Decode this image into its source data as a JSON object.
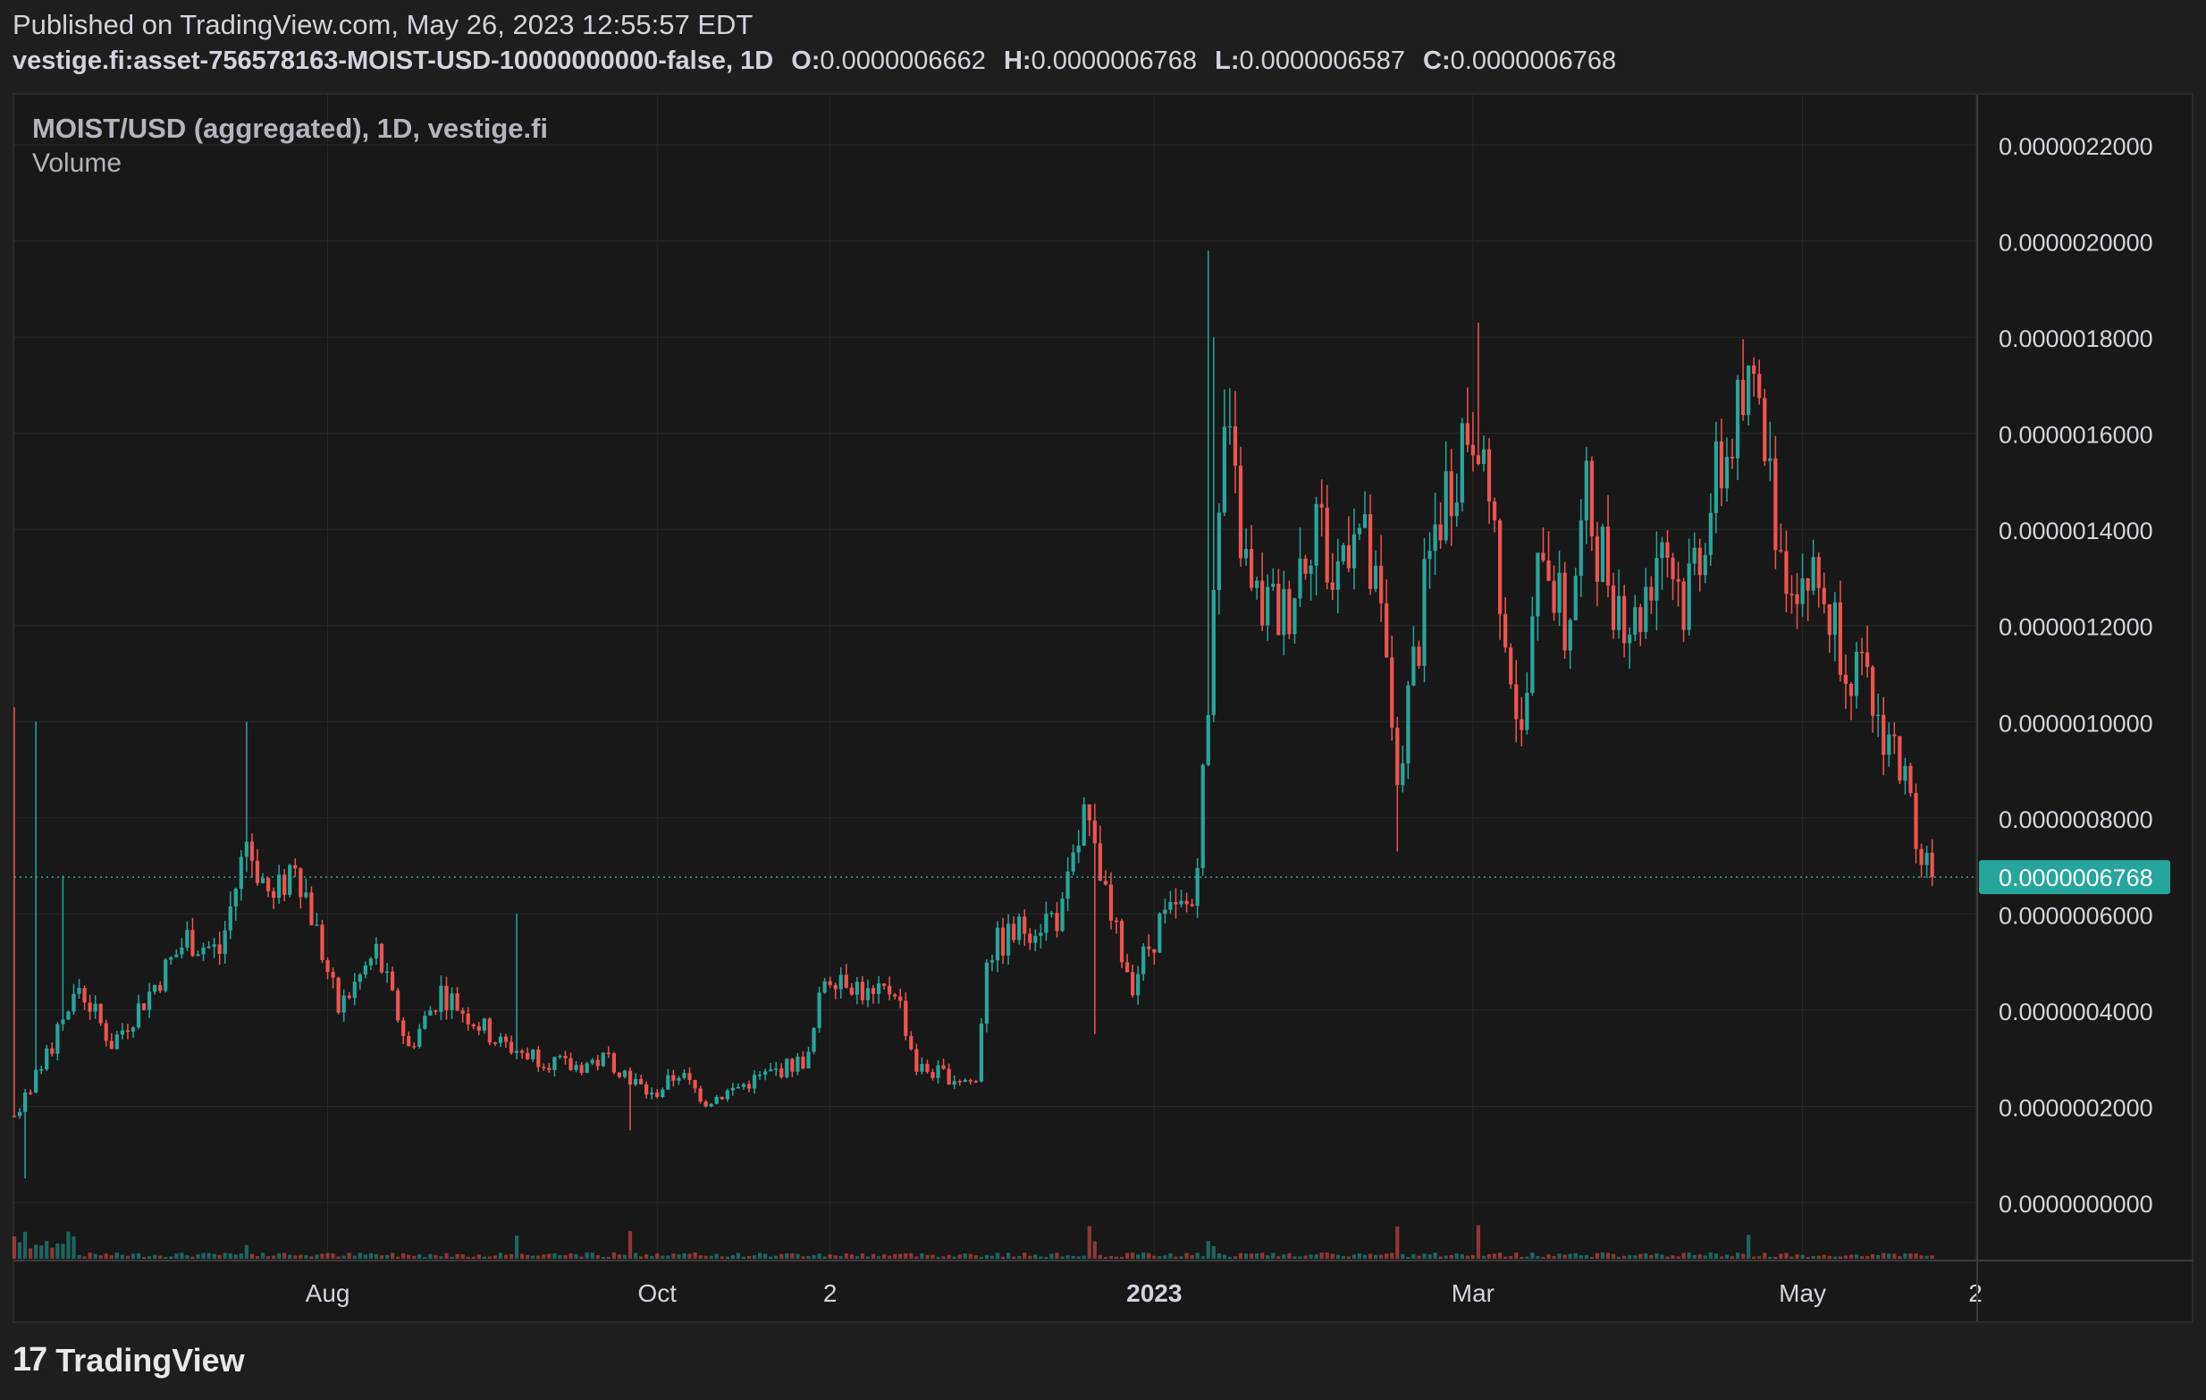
{
  "header": {
    "published": "Published on TradingView.com, May 26, 2023 12:55:57 EDT",
    "symbol": "vestige.fi:asset-756578163-MOIST-USD-10000000000-false, 1D",
    "o_label": "O:",
    "o_value": "0.0000006662",
    "h_label": "H:",
    "h_value": "0.0000006768",
    "l_label": "L:",
    "l_value": "0.0000006587",
    "c_label": "C:",
    "c_value": "0.0000006768"
  },
  "legend": {
    "title": "MOIST/USD (aggregated), 1D, vestige.fi",
    "volume": "Volume"
  },
  "footer": {
    "brand": "TradingView",
    "mark": "17"
  },
  "colors": {
    "up": "#26a69a",
    "down": "#ef5350",
    "price_badge": "#26a69a",
    "grid": "#2a2a2a",
    "axis_text": "#d1d4dc"
  },
  "chart_data": {
    "type": "candlestick",
    "title": "MOIST/USD (aggregated), 1D, vestige.fi",
    "interval": "1D",
    "date_range": [
      "2023-06-01",
      "2023-05-25"
    ],
    "x_ticks": [
      {
        "label": "Aug",
        "date": "2022-08-01"
      },
      {
        "label": "Oct",
        "date": "2022-10-01"
      },
      {
        "label": "2",
        "date": "2022-11-02"
      },
      {
        "label": "2023",
        "date": "2023-01-01"
      },
      {
        "label": "Mar",
        "date": "2023-03-01"
      },
      {
        "label": "May",
        "date": "2023-05-01"
      },
      {
        "label": "2",
        "date": "2023-06-02"
      }
    ],
    "x_range": [
      "2022-06-04",
      "2023-06-02"
    ],
    "y_ticks": [
      "0.0000000000",
      "0.0000002000",
      "0.0000004000",
      "0.0000006000",
      "0.0000008000",
      "0.0000010000",
      "0.0000012000",
      "0.0000014000",
      "0.0000016000",
      "0.0000018000",
      "0.0000020000",
      "0.0000022000"
    ],
    "y_range": [
      0,
      2.2e-06
    ],
    "last_price": 6.768e-07,
    "last_price_label": "0.0000006768",
    "grid": true,
    "volume_pane": true,
    "anchors": [
      {
        "date": "2022-06-04",
        "price": 1.8e-07
      },
      {
        "date": "2022-06-10",
        "price": 3e-07
      },
      {
        "date": "2022-06-16",
        "price": 4.5e-07
      },
      {
        "date": "2022-06-22",
        "price": 3.3e-07
      },
      {
        "date": "2022-06-28",
        "price": 4.2e-07
      },
      {
        "date": "2022-07-06",
        "price": 5.5e-07
      },
      {
        "date": "2022-07-12",
        "price": 5.2e-07
      },
      {
        "date": "2022-07-17",
        "price": 7.5e-07
      },
      {
        "date": "2022-07-22",
        "price": 6.2e-07
      },
      {
        "date": "2022-07-26",
        "price": 7.2e-07
      },
      {
        "date": "2022-08-03",
        "price": 4e-07
      },
      {
        "date": "2022-08-10",
        "price": 5.2e-07
      },
      {
        "date": "2022-08-16",
        "price": 3.2e-07
      },
      {
        "date": "2022-08-22",
        "price": 4.4e-07
      },
      {
        "date": "2022-09-02",
        "price": 3.3e-07
      },
      {
        "date": "2022-09-15",
        "price": 2.8e-07
      },
      {
        "date": "2022-09-22",
        "price": 3e-07
      },
      {
        "date": "2022-09-30",
        "price": 2.2e-07
      },
      {
        "date": "2022-10-05",
        "price": 2.7e-07
      },
      {
        "date": "2022-10-10",
        "price": 2.1e-07
      },
      {
        "date": "2022-10-20",
        "price": 2.6e-07
      },
      {
        "date": "2022-10-29",
        "price": 3e-07
      },
      {
        "date": "2022-11-01",
        "price": 4.7e-07
      },
      {
        "date": "2022-11-04",
        "price": 4.8e-07
      },
      {
        "date": "2022-11-10",
        "price": 4.2e-07
      },
      {
        "date": "2022-11-14",
        "price": 4.5e-07
      },
      {
        "date": "2022-11-18",
        "price": 2.8e-07
      },
      {
        "date": "2022-11-25",
        "price": 2.6e-07
      },
      {
        "date": "2022-11-29",
        "price": 2.5e-07
      },
      {
        "date": "2022-12-01",
        "price": 5.2e-07
      },
      {
        "date": "2022-12-09",
        "price": 5.8e-07
      },
      {
        "date": "2022-12-15",
        "price": 6e-07
      },
      {
        "date": "2022-12-19",
        "price": 8e-07
      },
      {
        "date": "2022-12-24",
        "price": 5.8e-07
      },
      {
        "date": "2022-12-28",
        "price": 4.6e-07
      },
      {
        "date": "2023-01-02",
        "price": 5.8e-07
      },
      {
        "date": "2023-01-08",
        "price": 6.2e-07
      },
      {
        "date": "2023-01-11",
        "price": 1e-06
      },
      {
        "date": "2023-01-14",
        "price": 1.6e-06
      },
      {
        "date": "2023-01-19",
        "price": 1.25e-06
      },
      {
        "date": "2023-01-25",
        "price": 1.22e-06
      },
      {
        "date": "2023-01-31",
        "price": 1.45e-06
      },
      {
        "date": "2023-02-03",
        "price": 1.28e-06
      },
      {
        "date": "2023-02-07",
        "price": 1.45e-06
      },
      {
        "date": "2023-02-12",
        "price": 1.2e-06
      },
      {
        "date": "2023-02-15",
        "price": 9e-07
      },
      {
        "date": "2023-02-19",
        "price": 1.18e-06
      },
      {
        "date": "2023-02-22",
        "price": 1.4e-06
      },
      {
        "date": "2023-02-27",
        "price": 1.6e-06
      },
      {
        "date": "2023-03-02",
        "price": 1.65e-06
      },
      {
        "date": "2023-03-06",
        "price": 1.3e-06
      },
      {
        "date": "2023-03-10",
        "price": 9.5e-07
      },
      {
        "date": "2023-03-14",
        "price": 1.4e-06
      },
      {
        "date": "2023-03-18",
        "price": 1.18e-06
      },
      {
        "date": "2023-03-22",
        "price": 1.45e-06
      },
      {
        "date": "2023-03-27",
        "price": 1.28e-06
      },
      {
        "date": "2023-03-31",
        "price": 1.2e-06
      },
      {
        "date": "2023-04-05",
        "price": 1.4e-06
      },
      {
        "date": "2023-04-09",
        "price": 1.25e-06
      },
      {
        "date": "2023-04-13",
        "price": 1.42e-06
      },
      {
        "date": "2023-04-18",
        "price": 1.6e-06
      },
      {
        "date": "2023-04-22",
        "price": 1.7e-06
      },
      {
        "date": "2023-04-24",
        "price": 1.58e-06
      },
      {
        "date": "2023-04-27",
        "price": 1.35e-06
      },
      {
        "date": "2023-05-01",
        "price": 1.3e-06
      },
      {
        "date": "2023-05-04",
        "price": 1.28e-06
      },
      {
        "date": "2023-05-07",
        "price": 1.2e-06
      },
      {
        "date": "2023-05-11",
        "price": 1.1e-06
      },
      {
        "date": "2023-05-15",
        "price": 1e-06
      },
      {
        "date": "2023-05-18",
        "price": 9.5e-07
      },
      {
        "date": "2023-05-21",
        "price": 8.2e-07
      },
      {
        "date": "2023-05-23",
        "price": 7.5e-07
      },
      {
        "date": "2023-05-25",
        "price": 6.768e-07
      }
    ],
    "spikes": [
      {
        "date": "2022-06-04",
        "high": 1.03e-06
      },
      {
        "date": "2022-06-08",
        "high": 1e-06
      },
      {
        "date": "2022-06-13",
        "high": 6.8e-07
      },
      {
        "date": "2022-07-17",
        "high": 1e-06
      },
      {
        "date": "2022-09-05",
        "high": 6e-07
      },
      {
        "date": "2023-01-11",
        "high": 1.98e-06
      },
      {
        "date": "2023-01-12",
        "high": 1.8e-06
      },
      {
        "date": "2023-03-02",
        "high": 1.83e-06
      },
      {
        "date": "2023-04-21",
        "high": 1.72e-06
      },
      {
        "date": "2022-12-20",
        "high": 8.2e-07
      }
    ],
    "dips": [
      {
        "date": "2022-06-06",
        "low": 5e-08
      },
      {
        "date": "2022-12-21",
        "low": 3.5e-07
      },
      {
        "date": "2023-02-15",
        "low": 7.3e-07
      },
      {
        "date": "2022-09-26",
        "low": 1.5e-07
      }
    ]
  }
}
